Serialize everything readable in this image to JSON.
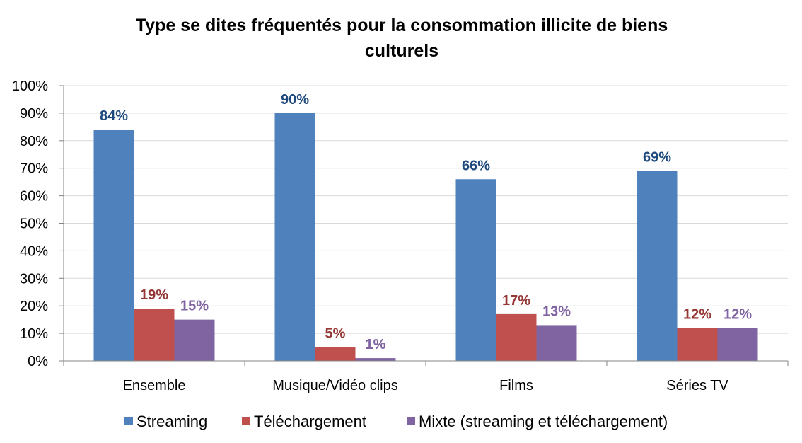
{
  "chart_data": {
    "type": "bar",
    "title": "Type se dites fréquentés pour la consommation illicite de biens culturels",
    "title_lines": [
      "Type se dites fréquentés pour la consommation illicite de biens",
      "culturels"
    ],
    "categories": [
      "Ensemble",
      "Musique/Vidéo clips",
      "Films",
      "Séries TV"
    ],
    "series": [
      {
        "name": "Streaming",
        "values": [
          84,
          90,
          66,
          69
        ],
        "labels": [
          "84%",
          "90%",
          "66%",
          "69%"
        ],
        "color": "#4F81BD",
        "label_color": "#1F497D"
      },
      {
        "name": "Téléchargement",
        "values": [
          19,
          5,
          17,
          12
        ],
        "labels": [
          "19%",
          "5%",
          "17%",
          "12%"
        ],
        "color": "#C0504D",
        "label_color": "#953735"
      },
      {
        "name": "Mixte (streaming et téléchargement)",
        "values": [
          15,
          1,
          13,
          12
        ],
        "labels": [
          "15%",
          "1%",
          "13%",
          "12%"
        ],
        "color": "#8064A2",
        "label_color": "#8064A2"
      }
    ],
    "y_ticks": [
      "0%",
      "10%",
      "20%",
      "30%",
      "40%",
      "50%",
      "60%",
      "70%",
      "80%",
      "90%",
      "100%"
    ],
    "ylim": [
      0,
      100
    ],
    "grid": true,
    "legend_position": "bottom",
    "xlabel": "",
    "ylabel": ""
  }
}
